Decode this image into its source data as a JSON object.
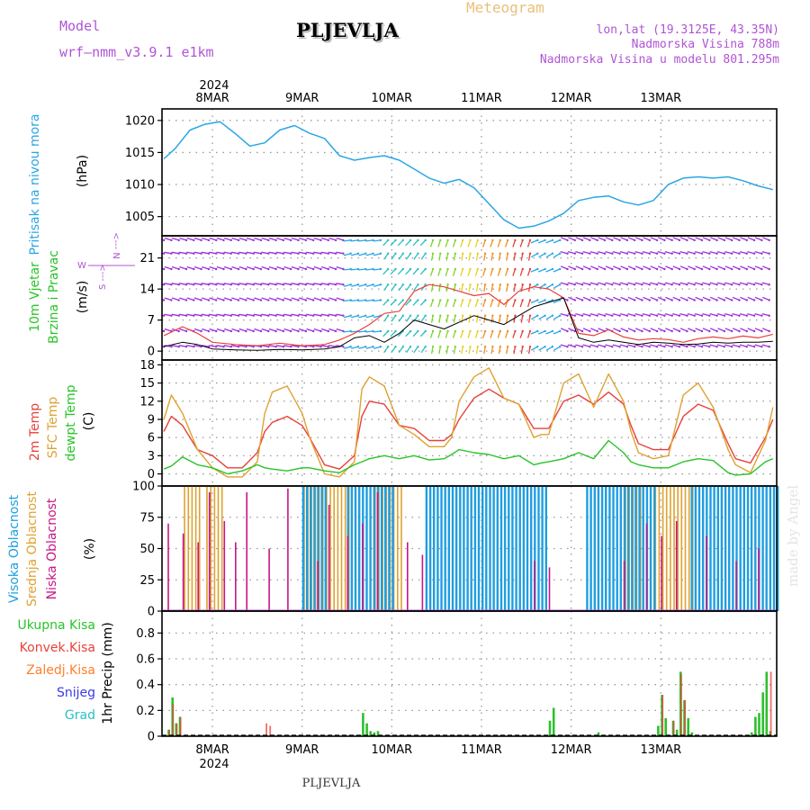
{
  "header": {
    "model_label": "Model",
    "model_name": "wrf–nmm_v3.9.1  e1km",
    "station": "PLJEVLJA",
    "product": "Meteogram",
    "lonlat": "lon,lat (19.3125E, 43.35N)",
    "elevation": "Nadmorska Visina 788m",
    "model_elevation": "Nadmorska Visina u modelu 801.295m",
    "footer_station": "PLJEVLJA",
    "watermark": "made by Angel"
  },
  "time_axis": {
    "year": "2024",
    "days": [
      "8MAR",
      "9MAR",
      "10MAR",
      "11MAR",
      "12MAR",
      "13MAR"
    ],
    "x_range_hours": [
      -13.5,
      151
    ]
  },
  "colors": {
    "pressure": "#2aa6e4",
    "temp2m": "#e8403a",
    "sfc_temp": "#dea231",
    "dewpoint": "#28c428",
    "high_cloud": "#1e9ee0",
    "mid_cloud": "#dea231",
    "low_cloud": "#c71585",
    "total_precip": "#2ec02e",
    "convective": "#e8403a",
    "frozen": "#ff7f2a",
    "snow": "#3a3ae8",
    "hail": "#2ac0c0",
    "model_purple": "#b054d6"
  },
  "labels": {
    "pressure": {
      "title": "Pritisak na nivou mora",
      "unit": "(hPa)"
    },
    "wind": {
      "title1": "10m Vjetar",
      "title2": "Brzina i Pravac",
      "unit": "(m/s)",
      "compass_w": "W",
      "compass_n": "<--- N",
      "compass_s": "S --->"
    },
    "temperature": {
      "t2m": "2m Temp",
      "sfc": "SFC Temp",
      "dew": "dewpt Temp",
      "unit": "(C)"
    },
    "cloud": {
      "high": "Visoka Oblacnost",
      "mid": "Srednja Oblacnost",
      "low": "Niska Oblacnost",
      "unit": "(%)"
    },
    "precip": {
      "total": "Ukupna Kisa",
      "conv": "Konvek.Kisa",
      "frozen": "Zaledj.Kisa",
      "snow": "Snijeg",
      "hail": "Grad",
      "unit": "1hr Precip (mm)"
    }
  },
  "chart_data": [
    {
      "type": "line",
      "panel": "pressure",
      "ylabel": "(hPa)",
      "ylim": [
        1002,
        1021.8
      ],
      "yticks": [
        1005,
        1010,
        1015,
        1020
      ],
      "x": [
        -13,
        -10,
        -6,
        -2,
        2,
        6,
        10,
        14,
        18,
        22,
        26,
        30,
        34,
        38,
        42,
        46,
        50,
        54,
        58,
        62,
        66,
        70,
        74,
        78,
        82,
        86,
        90,
        94,
        98,
        102,
        106,
        110,
        114,
        118,
        122,
        126,
        130,
        134,
        138,
        142,
        146,
        150
      ],
      "series": [
        {
          "name": "Pritisak na nivou mora",
          "values": [
            1014,
            1015.6,
            1018.5,
            1019.4,
            1019.8,
            1018,
            1016,
            1016.5,
            1018.5,
            1019.2,
            1018,
            1017.2,
            1014.5,
            1013.8,
            1014.2,
            1014.5,
            1013.8,
            1012.4,
            1011,
            1010.2,
            1010.8,
            1009.5,
            1007,
            1004.5,
            1003.2,
            1003.5,
            1004.3,
            1005.5,
            1007.5,
            1008,
            1008.2,
            1007.3,
            1006.8,
            1007.5,
            1010,
            1011,
            1011.2,
            1011,
            1011.2,
            1010.6,
            1009.8,
            1009.2
          ]
        }
      ]
    },
    {
      "type": "line",
      "panel": "wind",
      "ylabel": "(m/s)",
      "ylim": [
        -2,
        26
      ],
      "yticks": [
        0,
        7,
        14,
        21
      ],
      "x": [
        -13,
        -8,
        -4,
        0,
        6,
        12,
        18,
        24,
        30,
        34,
        38,
        42,
        46,
        50,
        54,
        58,
        62,
        66,
        70,
        74,
        78,
        82,
        86,
        90,
        94,
        98,
        102,
        106,
        110,
        114,
        118,
        122,
        126,
        130,
        134,
        138,
        142,
        146,
        150
      ],
      "series": [
        {
          "name": "speed",
          "values": [
            3.5,
            5.5,
            4,
            2,
            1.5,
            1.2,
            1.8,
            1.2,
            1.5,
            2.5,
            4,
            6,
            8.5,
            9,
            13.5,
            15,
            14.5,
            13.5,
            12.5,
            13,
            10.5,
            13.5,
            14.5,
            14,
            12,
            4,
            3.5,
            4.8,
            3.2,
            2.5,
            2.8,
            2.6,
            2,
            2.8,
            3.2,
            2.8,
            3.4,
            3,
            3.8
          ]
        },
        {
          "name": "gust",
          "values": [
            1,
            2,
            1.5,
            0.5,
            0.3,
            0.2,
            0.4,
            0.3,
            0.5,
            1,
            3,
            3.5,
            2,
            4,
            7,
            6,
            5,
            6.5,
            8,
            7,
            6,
            8,
            10,
            11,
            12,
            3,
            2,
            2.5,
            2,
            1.5,
            2,
            1.8,
            1.5,
            1.6,
            2,
            1.8,
            2,
            2,
            2.2
          ]
        }
      ]
    },
    {
      "type": "line",
      "panel": "temperature",
      "ylabel": "(C)",
      "ylim": [
        -2,
        18.8
      ],
      "yticks": [
        0,
        3,
        6,
        9,
        12,
        15,
        18
      ],
      "x": [
        -13,
        -11,
        -8,
        -4,
        0,
        4,
        8,
        12,
        14,
        16,
        20,
        24,
        26,
        30,
        34,
        38,
        40,
        42,
        46,
        50,
        54,
        58,
        62,
        64,
        66,
        70,
        74,
        78,
        82,
        86,
        88,
        90,
        94,
        98,
        102,
        106,
        110,
        112,
        114,
        118,
        122,
        126,
        130,
        134,
        138,
        140,
        144,
        148,
        150
      ],
      "series": [
        {
          "name": "2m Temp",
          "values": [
            7,
            9.5,
            8,
            4,
            3,
            1,
            1,
            3.5,
            7,
            8.5,
            9.5,
            8,
            6,
            1.5,
            0.8,
            3,
            9.5,
            12,
            11.5,
            8,
            7.5,
            5.5,
            5.5,
            6.5,
            9,
            12.5,
            14,
            12.5,
            11.5,
            7.5,
            7.5,
            7.5,
            12,
            13,
            11.5,
            13.5,
            11.5,
            8,
            5,
            4,
            4,
            9.5,
            11.5,
            10.5,
            5,
            2.5,
            1.8,
            6,
            9
          ]
        },
        {
          "name": "SFC Temp",
          "values": [
            9,
            13,
            10,
            4,
            1,
            -0.5,
            -0.5,
            2,
            10,
            13.5,
            14.5,
            10,
            6,
            0,
            -0.5,
            2,
            14,
            16,
            14.5,
            8,
            6.5,
            4.5,
            4.5,
            6,
            12,
            16,
            17.5,
            12.5,
            11.5,
            6,
            6.5,
            6.5,
            15,
            16.5,
            11,
            16.5,
            12,
            7,
            3.5,
            2.5,
            3,
            13,
            15,
            11,
            4,
            1.5,
            0.2,
            5.5,
            11
          ]
        },
        {
          "name": "dewpt Temp",
          "values": [
            0.8,
            1.3,
            2.8,
            1.5,
            1,
            0,
            0.5,
            1.5,
            1,
            0.8,
            0.5,
            1,
            1,
            0.5,
            0.2,
            1.5,
            2,
            2.5,
            3,
            2.5,
            3,
            2.3,
            2.5,
            3.2,
            4,
            3.5,
            3.2,
            2.5,
            3,
            1.5,
            1.8,
            2,
            2.5,
            3.5,
            2.5,
            5.5,
            3.5,
            2,
            1.5,
            1,
            1,
            2,
            2.5,
            2.2,
            0.2,
            -0.2,
            0,
            2,
            2.5
          ]
        }
      ]
    },
    {
      "type": "bar",
      "panel": "cloud",
      "ylabel": "(%)",
      "ylim": [
        0,
        100
      ],
      "yticks": [
        0,
        25,
        50,
        75,
        100
      ],
      "segments": [
        {
          "name": "high",
          "x_ranges": [
            [
              24,
              30
            ],
            [
              36,
              48
            ],
            [
              57,
              89
            ],
            [
              100,
              118
            ],
            [
              128,
              151
            ]
          ],
          "value": 100
        },
        {
          "name": "mid",
          "x_ranges": [
            [
              -8,
              -4
            ],
            [
              -2,
              2
            ],
            [
              24,
              36
            ],
            [
              43,
              50
            ],
            [
              110,
              114
            ],
            [
              118,
              128
            ]
          ],
          "value": 100
        },
        {
          "name": "low",
          "x": [
            -12,
            -8,
            -4,
            -1,
            3,
            6,
            9,
            15,
            20,
            28,
            31,
            36,
            40,
            44,
            52,
            56,
            86,
            90,
            110,
            116,
            120,
            124,
            132,
            140,
            146
          ],
          "values": [
            70,
            62,
            55,
            95,
            72,
            55,
            95,
            50,
            98,
            40,
            85,
            60,
            70,
            95,
            55,
            45,
            40,
            35,
            40,
            70,
            60,
            72,
            60,
            40,
            50
          ]
        }
      ]
    },
    {
      "type": "bar",
      "panel": "precip",
      "ylabel": "1hr Precip (mm)",
      "ylim": [
        0,
        0.97
      ],
      "yticks": [
        0,
        0.2,
        0.4,
        0.6,
        0.8
      ],
      "series": [
        {
          "name": "Ukupna Kisa",
          "x": [
            -12,
            -11,
            -10,
            -9,
            40,
            41,
            42,
            43,
            44,
            90,
            91,
            103,
            119,
            120,
            121,
            123,
            124,
            125,
            126,
            127,
            128,
            144,
            145,
            146,
            147,
            148,
            149
          ],
          "values": [
            0.05,
            0.3,
            0.1,
            0.15,
            0.18,
            0.1,
            0.04,
            0.03,
            0.04,
            0.12,
            0.22,
            0.03,
            0.08,
            0.32,
            0.14,
            0.12,
            0.05,
            0.5,
            0.28,
            0.14,
            0.03,
            0.03,
            0.15,
            0.18,
            0.34,
            0.5,
            0.04
          ]
        },
        {
          "name": "Konvek.Kisa",
          "x": [
            -12,
            -11,
            -10,
            -9,
            14,
            15,
            120,
            123,
            125,
            126,
            149
          ],
          "values": [
            0.05,
            0.25,
            0.1,
            0.15,
            0.1,
            0.08,
            0.32,
            0.12,
            0.48,
            0.28,
            0.5
          ]
        }
      ]
    }
  ]
}
